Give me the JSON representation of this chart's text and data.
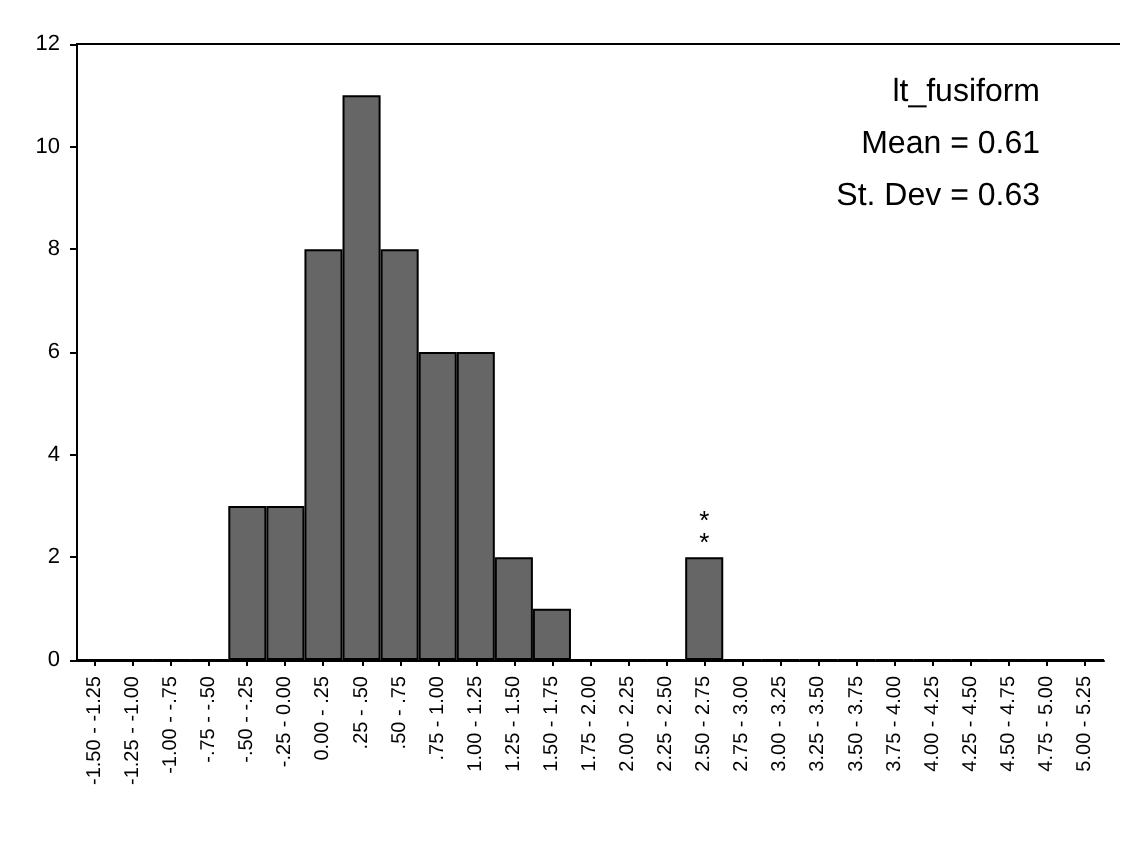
{
  "chart_data": {
    "type": "bar",
    "categories": [
      "-1.50 - -1.25",
      "-1.25 - -1.00",
      "-1.00 - -.75",
      "-.75 - -.50",
      "-.50 - -.25",
      "-.25 - 0.00",
      "0.00 - .25",
      ".25 - .50",
      ".50 - .75",
      ".75 - 1.00",
      "1.00 - 1.25",
      "1.25 - 1.50",
      "1.50 - 1.75",
      "1.75 - 2.00",
      "2.00 - 2.25",
      "2.25 - 2.50",
      "2.50 - 2.75",
      "2.75 - 3.00",
      "3.00 - 3.25",
      "3.25 - 3.50",
      "3.50 - 3.75",
      "3.75 - 4.00",
      "4.00 - 4.25",
      "4.25 - 4.50",
      "4.50 - 4.75",
      "4.75 - 5.00",
      "5.00 - 5.25"
    ],
    "values": [
      0,
      0,
      0,
      0,
      3,
      3,
      8,
      11,
      8,
      6,
      6,
      2,
      1,
      0,
      0,
      0,
      2,
      0,
      0,
      0,
      0,
      0,
      0,
      0,
      0,
      0,
      0
    ],
    "color": "#666666",
    "ylim": [
      0,
      12
    ],
    "yticks": [
      0,
      2,
      4,
      6,
      8,
      10,
      12
    ],
    "grid": false,
    "annotations": [
      "lt_fusiform",
      "Mean = 0.61",
      "St. Dev = 0.63",
      {
        "text": "*\n*",
        "x": "2.50 - 2.75",
        "y": 2
      }
    ]
  }
}
